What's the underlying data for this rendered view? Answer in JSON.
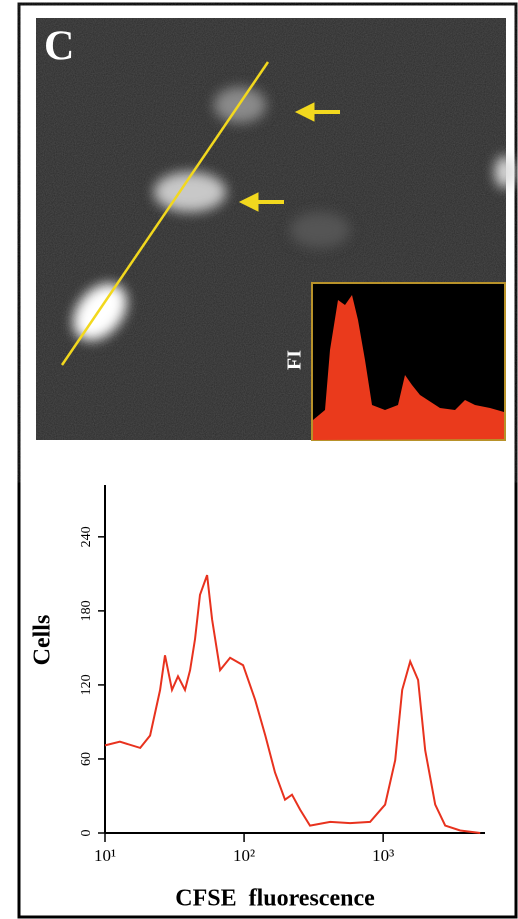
{
  "panel_label": "C",
  "inset_label": "FI",
  "chart_data": {
    "type": "line",
    "xlabel": "CFSE  fluorescence",
    "ylabel": "Cells",
    "log_x": true,
    "color": "#e8321e",
    "x": [
      10,
      12.8,
      17.9,
      21.1,
      24.9,
      27,
      30.3,
      33.5,
      37.6,
      40.9,
      44.4,
      48.2,
      54.2,
      58.9,
      67.2,
      79.3,
      98.4,
      120,
      142,
      167,
      197,
      221,
      253,
      298,
      416,
      579,
      806,
      1033,
      1220,
      1370,
      1565,
      1785,
      2005,
      2366,
      2793,
      3583,
      4990
    ],
    "values": [
      71,
      74,
      69,
      79,
      116,
      144,
      116,
      127,
      116,
      132,
      157,
      193,
      209,
      173,
      132,
      142,
      136,
      108,
      79,
      49,
      27,
      31,
      19,
      6,
      9,
      8,
      9,
      23,
      59,
      116,
      139,
      124,
      67,
      23,
      6,
      2,
      0
    ],
    "xlim": [
      10,
      5400
    ],
    "ylim": [
      0,
      282
    ],
    "xticks": [
      {
        "value": 10,
        "label": "10¹"
      },
      {
        "value": 100,
        "label": "10²"
      },
      {
        "value": 1000,
        "label": "10³"
      }
    ],
    "yticks": [
      0,
      60,
      120,
      180,
      240
    ]
  }
}
